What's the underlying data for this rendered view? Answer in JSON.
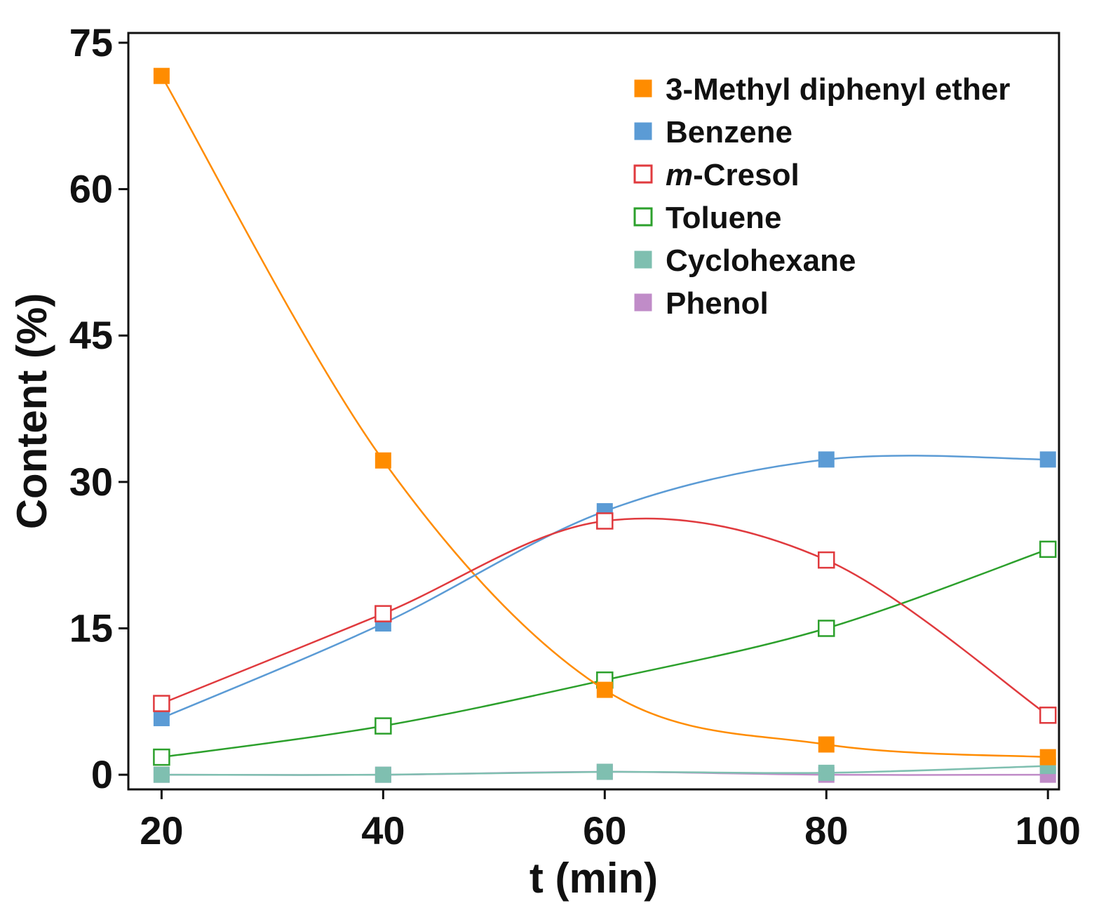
{
  "chart_data": {
    "type": "line",
    "title": "",
    "xlabel": "t (min)",
    "ylabel": "Content (%)",
    "x": [
      20,
      40,
      60,
      80,
      100
    ],
    "xlim": [
      17,
      101
    ],
    "ylim": [
      -1.5,
      76
    ],
    "xticks": [
      20,
      40,
      60,
      80,
      100
    ],
    "yticks": [
      0,
      15,
      30,
      45,
      60,
      75
    ],
    "legend_position": "top-right",
    "series": [
      {
        "name": "3-Methyl diphenyl ether",
        "color": "#ff8c00",
        "marker": "filled-square",
        "values": [
          71.6,
          32.2,
          8.7,
          3.1,
          1.8
        ]
      },
      {
        "name": "Benzene",
        "color": "#5b9bd5",
        "marker": "filled-square",
        "values": [
          5.8,
          15.5,
          27.0,
          32.3,
          32.3
        ]
      },
      {
        "name": "m-Cresol",
        "name_italic": "m",
        "name_rest": "-Cresol",
        "color": "#e03a3e",
        "marker": "open-square",
        "values": [
          7.3,
          16.5,
          26.0,
          22.0,
          6.1
        ]
      },
      {
        "name": "Toluene",
        "color": "#2ca02c",
        "marker": "open-square",
        "values": [
          1.8,
          5.0,
          9.7,
          15.0,
          23.1
        ]
      },
      {
        "name": "Cyclohexane",
        "color": "#7fbfb0",
        "marker": "filled-square",
        "values": [
          0.0,
          0.0,
          0.3,
          0.2,
          0.9
        ]
      },
      {
        "name": "Phenol",
        "color": "#c08cc8",
        "marker": "filled-square",
        "values": [
          0.0,
          0.0,
          0.3,
          0.0,
          0.0
        ]
      }
    ]
  }
}
